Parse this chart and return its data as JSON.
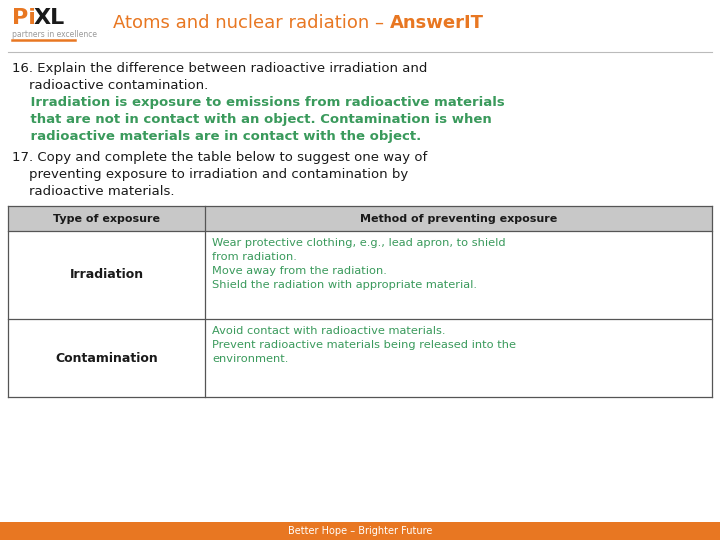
{
  "title_main": "Atoms and nuclear radiation – ",
  "title_bold": "AnswerIT",
  "title_color": "#E87722",
  "background_color": "#FFFFFF",
  "logo_color_Pi": "#E87722",
  "logo_color_XL": "#1A1A1A",
  "logo_sub": "partners in excellence",
  "underline_color": "#E87722",
  "footer_text": "Better Hope – Brighter Future",
  "footer_bg": "#E87722",
  "green_color": "#3A9A5C",
  "black_color": "#1A1A1A",
  "table_header_bg": "#C8C8C8",
  "table_border_color": "#555555",
  "table_col1": "Type of exposure",
  "table_col2": "Method of preventing exposure",
  "irradiation_label": "Irradiation",
  "irradiation_text": "Wear protective clothing, e.g., lead apron, to shield\nfrom radiation.\nMove away from the radiation.\nShield the radiation with appropriate material.",
  "contamination_label": "Contamination",
  "contamination_text": "Avoid contact with radioactive materials.\nPrevent radioactive materials being released into the\nenvironment.",
  "table_answer_color": "#3A9A5C",
  "q16_black1": "16. Explain the difference between radioactive irradiation and",
  "q16_black2": "    radioactive contamination.",
  "q16_green1": "    Irradiation is exposure to emissions from radioactive materials",
  "q16_green2": "    that are not in contact with an object. Contamination is when",
  "q16_green3": "    radioactive materials are in contact with the object.",
  "q17_line1": "17. Copy and complete the table below to suggest one way of",
  "q17_line2": "    preventing exposure to irradiation and contamination by",
  "q17_line3": "    radioactive materials."
}
